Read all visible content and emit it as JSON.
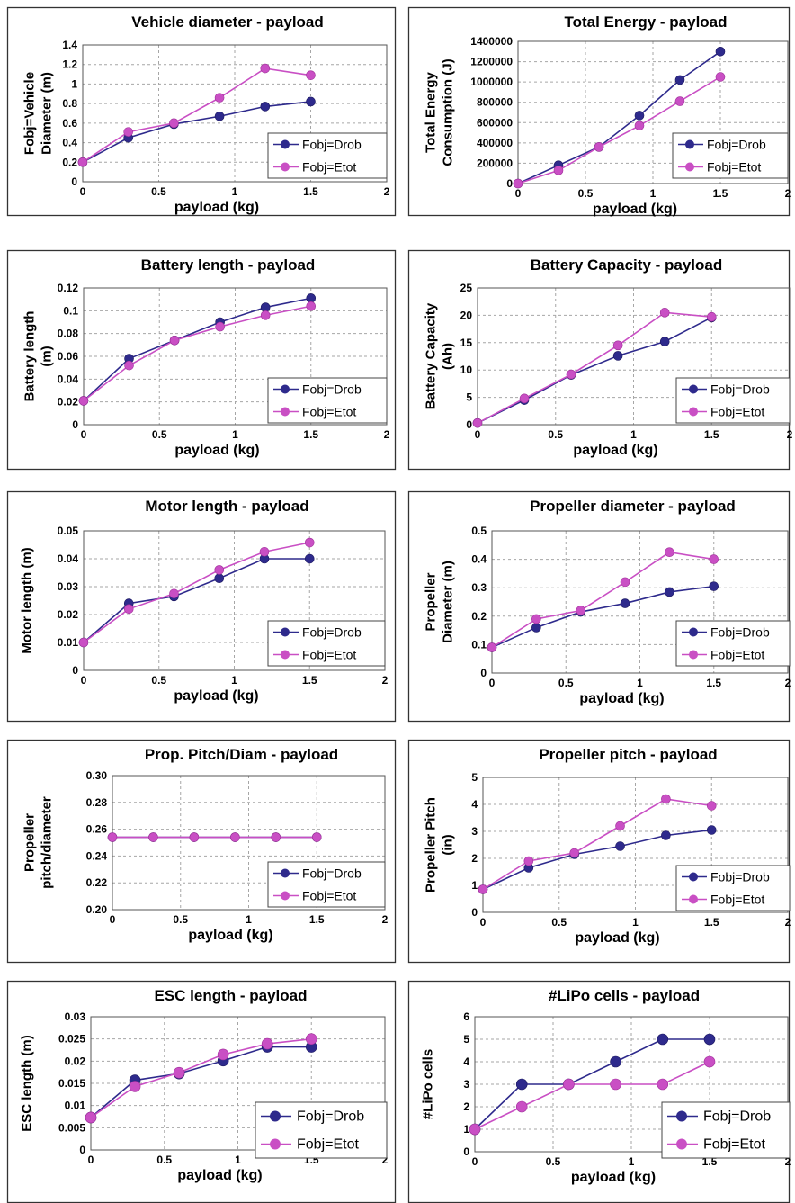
{
  "colors": {
    "drob": "#2e2a8c",
    "etot": "#c94fc4",
    "grid": "#a6a6a6",
    "frame": "#333333"
  },
  "chart_data": [
    {
      "type": "line",
      "title": "Vehicle diameter - payload",
      "xlabel": "payload (kg)",
      "ylabel": [
        "Fobj=Vehicle",
        "Diameter (m)"
      ],
      "x": [
        0,
        0.3,
        0.6,
        0.9,
        1.2,
        1.5
      ],
      "xlim": [
        0,
        2
      ],
      "xticks": [
        0,
        0.5,
        1,
        1.5,
        2
      ],
      "xtick_labels": [
        "0",
        "0.5",
        "1",
        "1.5",
        "2"
      ],
      "ylim": [
        0,
        1.4
      ],
      "yticks": [
        0,
        0.2,
        0.4,
        0.6,
        0.8,
        1,
        1.2,
        1.4
      ],
      "ytick_labels": [
        "0",
        "0.2",
        "0.4",
        "0.6",
        "0.8",
        "1",
        "1.2",
        "1.4"
      ],
      "series": [
        {
          "name": "Fobj=Drob",
          "values": [
            0.2,
            0.45,
            0.59,
            0.67,
            0.77,
            0.82
          ]
        },
        {
          "name": "Fobj=Etot",
          "values": [
            0.2,
            0.51,
            0.6,
            0.86,
            1.16,
            1.09
          ]
        }
      ],
      "grid": true,
      "legend": "bottom-right"
    },
    {
      "type": "line",
      "title": "Total Energy - payload",
      "xlabel": "payload (kg)",
      "ylabel": [
        "Total Energy",
        "Consumption (J)"
      ],
      "x": [
        0,
        0.3,
        0.6,
        0.9,
        1.2,
        1.5
      ],
      "xlim": [
        0,
        2
      ],
      "xticks": [
        0,
        0.5,
        1,
        1.5,
        2
      ],
      "xtick_labels": [
        "0",
        "0.5",
        "1",
        "1.5",
        "2"
      ],
      "ylim": [
        0,
        1400000
      ],
      "yticks": [
        0,
        200000,
        400000,
        600000,
        800000,
        1000000,
        1200000,
        1400000
      ],
      "ytick_labels": [
        "0",
        "200000",
        "400000",
        "600000",
        "800000",
        "1000000",
        "1200000",
        "1400000"
      ],
      "series": [
        {
          "name": "Fobj=Drob",
          "values": [
            0,
            180000,
            360000,
            670000,
            1020000,
            1300000
          ]
        },
        {
          "name": "Fobj=Etot",
          "values": [
            0,
            130000,
            360000,
            570000,
            810000,
            1050000
          ]
        }
      ],
      "grid": true,
      "legend": "bottom-right"
    },
    {
      "type": "line",
      "title": "Battery length - payload",
      "xlabel": "payload (kg)",
      "ylabel": [
        "Battery length",
        "(m)"
      ],
      "x": [
        0,
        0.3,
        0.6,
        0.9,
        1.2,
        1.5
      ],
      "xlim": [
        0,
        2
      ],
      "xticks": [
        0,
        0.5,
        1,
        1.5,
        2
      ],
      "xtick_labels": [
        "0",
        "0.5",
        "1",
        "1.5",
        "2"
      ],
      "ylim": [
        0,
        0.12
      ],
      "yticks": [
        0,
        0.02,
        0.04,
        0.06,
        0.08,
        0.1,
        0.12
      ],
      "ytick_labels": [
        "0",
        "0.02",
        "0.04",
        "0.06",
        "0.08",
        "0.1",
        "0.12"
      ],
      "series": [
        {
          "name": "Fobj=Drob",
          "values": [
            0.021,
            0.058,
            0.074,
            0.09,
            0.103,
            0.111
          ]
        },
        {
          "name": "Fobj=Etot",
          "values": [
            0.021,
            0.052,
            0.074,
            0.086,
            0.096,
            0.104
          ]
        }
      ],
      "grid": true,
      "legend": "bottom-right"
    },
    {
      "type": "line",
      "title": "Battery Capacity - payload",
      "xlabel": "payload (kg)",
      "ylabel": [
        "Battery Capacity",
        "(Ah)"
      ],
      "x": [
        0,
        0.3,
        0.6,
        0.9,
        1.2,
        1.5
      ],
      "xlim": [
        0,
        2
      ],
      "xticks": [
        0,
        0.5,
        1,
        1.5,
        2
      ],
      "xtick_labels": [
        "0",
        "0.5",
        "1",
        "1.5",
        "2"
      ],
      "ylim": [
        0,
        25
      ],
      "yticks": [
        0,
        5,
        10,
        15,
        20,
        25
      ],
      "ytick_labels": [
        "0",
        "5",
        "10",
        "15",
        "20",
        "25"
      ],
      "series": [
        {
          "name": "Fobj=Drob",
          "values": [
            0.3,
            4.5,
            9.1,
            12.6,
            15.2,
            19.6
          ]
        },
        {
          "name": "Fobj=Etot",
          "values": [
            0.3,
            4.8,
            9.2,
            14.5,
            20.5,
            19.7
          ]
        }
      ],
      "grid": true,
      "legend": "bottom-right"
    },
    {
      "type": "line",
      "title": "Motor length - payload",
      "xlabel": "payload (kg)",
      "ylabel": [
        "Motor length (m)"
      ],
      "x": [
        0,
        0.3,
        0.6,
        0.9,
        1.2,
        1.5
      ],
      "xlim": [
        0,
        2
      ],
      "xticks": [
        0,
        0.5,
        1,
        1.5,
        2
      ],
      "xtick_labels": [
        "0",
        "0.5",
        "1",
        "1.5",
        "2"
      ],
      "ylim": [
        0,
        0.05
      ],
      "yticks": [
        0,
        0.01,
        0.02,
        0.03,
        0.04,
        0.05
      ],
      "ytick_labels": [
        "0",
        "0.01",
        "0.02",
        "0.03",
        "0.04",
        "0.05"
      ],
      "series": [
        {
          "name": "Fobj=Drob",
          "values": [
            0.01,
            0.024,
            0.0265,
            0.033,
            0.04,
            0.04
          ]
        },
        {
          "name": "Fobj=Etot",
          "values": [
            0.01,
            0.022,
            0.0275,
            0.036,
            0.0425,
            0.0458
          ]
        }
      ],
      "grid": true,
      "legend": "bottom-right"
    },
    {
      "type": "line",
      "title": "Propeller diameter - payload",
      "xlabel": "payload (kg)",
      "ylabel": [
        "Propeller",
        "Diameter (m)"
      ],
      "x": [
        0,
        0.3,
        0.6,
        0.9,
        1.2,
        1.5
      ],
      "xlim": [
        0,
        2
      ],
      "xticks": [
        0,
        0.5,
        1,
        1.5,
        2
      ],
      "xtick_labels": [
        "0",
        "0.5",
        "1",
        "1.5",
        "2"
      ],
      "ylim": [
        0,
        0.5
      ],
      "yticks": [
        0,
        0.1,
        0.2,
        0.3,
        0.4,
        0.5
      ],
      "ytick_labels": [
        "0",
        "0.1",
        "0.2",
        "0.3",
        "0.4",
        "0.5"
      ],
      "series": [
        {
          "name": "Fobj=Drob",
          "values": [
            0.09,
            0.16,
            0.215,
            0.245,
            0.285,
            0.305
          ]
        },
        {
          "name": "Fobj=Etot",
          "values": [
            0.09,
            0.19,
            0.22,
            0.32,
            0.425,
            0.4
          ]
        }
      ],
      "grid": true,
      "legend": "bottom-right"
    },
    {
      "type": "line",
      "title": "Prop. Pitch/Diam - payload",
      "xlabel": "payload (kg)",
      "ylabel": [
        "Propeller",
        "pitch/diameter"
      ],
      "x": [
        0,
        0.3,
        0.6,
        0.9,
        1.2,
        1.5
      ],
      "xlim": [
        0,
        2
      ],
      "xticks": [
        0,
        0.5,
        1,
        1.5,
        2
      ],
      "xtick_labels": [
        "0",
        "0.5",
        "1",
        "1.5",
        "2"
      ],
      "ylim": [
        0.2,
        0.3
      ],
      "yticks": [
        0.2,
        0.22,
        0.24,
        0.26,
        0.28,
        0.3
      ],
      "ytick_labels": [
        "0.20",
        "0.22",
        "0.24",
        "0.26",
        "0.28",
        "0.30"
      ],
      "series": [
        {
          "name": "Fobj=Drob",
          "values": [
            0.254,
            0.254,
            0.254,
            0.254,
            0.254,
            0.254
          ]
        },
        {
          "name": "Fobj=Etot",
          "values": [
            0.254,
            0.254,
            0.254,
            0.254,
            0.254,
            0.254
          ]
        }
      ],
      "grid": true,
      "legend": "bottom-right"
    },
    {
      "type": "line",
      "title": "Propeller pitch - payload",
      "xlabel": "payload (kg)",
      "ylabel": [
        "Propeller Pitch",
        "(in)"
      ],
      "x": [
        0,
        0.3,
        0.6,
        0.9,
        1.2,
        1.5
      ],
      "xlim": [
        0,
        2
      ],
      "xticks": [
        0,
        0.5,
        1,
        1.5,
        2
      ],
      "xtick_labels": [
        "0",
        "0.5",
        "1",
        "1.5",
        "2"
      ],
      "ylim": [
        0,
        5
      ],
      "yticks": [
        0,
        1,
        2,
        3,
        4,
        5
      ],
      "ytick_labels": [
        "0",
        "1",
        "2",
        "3",
        "4",
        "5"
      ],
      "series": [
        {
          "name": "Fobj=Drob",
          "values": [
            0.85,
            1.65,
            2.15,
            2.45,
            2.85,
            3.05
          ]
        },
        {
          "name": "Fobj=Etot",
          "values": [
            0.85,
            1.9,
            2.2,
            3.2,
            4.2,
            3.95
          ]
        }
      ],
      "grid": true,
      "legend": "bottom-right"
    },
    {
      "type": "line",
      "title": "ESC length - payload",
      "xlabel": "payload (kg)",
      "ylabel": [
        "ESC length (m)"
      ],
      "x": [
        0,
        0.3,
        0.6,
        0.9,
        1.2,
        1.5
      ],
      "xlim": [
        0,
        2
      ],
      "xticks": [
        0,
        0.5,
        1,
        1.5,
        2
      ],
      "xtick_labels": [
        "0",
        "0.5",
        "1",
        "1.5",
        "2"
      ],
      "ylim": [
        0,
        0.03
      ],
      "yticks": [
        0,
        0.005,
        0.01,
        0.015,
        0.02,
        0.025,
        0.03
      ],
      "ytick_labels": [
        "0",
        "0.005",
        "0.01",
        "0.015",
        "0.02",
        "0.025",
        "0.03"
      ],
      "series": [
        {
          "name": "Fobj=Drob",
          "values": [
            0.0073,
            0.0157,
            0.0172,
            0.0201,
            0.0232,
            0.0232
          ]
        },
        {
          "name": "Fobj=Etot",
          "values": [
            0.0073,
            0.0143,
            0.0174,
            0.0215,
            0.0239,
            0.025
          ]
        }
      ],
      "grid": true,
      "legend": "bottom-right"
    },
    {
      "type": "line",
      "title": "#LiPo cells - payload",
      "xlabel": "payload (kg)",
      "ylabel": [
        "#LiPo cells"
      ],
      "x": [
        0,
        0.3,
        0.6,
        0.9,
        1.2,
        1.5
      ],
      "xlim": [
        0,
        2
      ],
      "xticks": [
        0,
        0.5,
        1,
        1.5,
        2
      ],
      "xtick_labels": [
        "0",
        "0.5",
        "1",
        "1.5",
        "2"
      ],
      "ylim": [
        0,
        6
      ],
      "yticks": [
        0,
        1,
        2,
        3,
        4,
        5,
        6
      ],
      "ytick_labels": [
        "0",
        "1",
        "2",
        "3",
        "4",
        "5",
        "6"
      ],
      "series": [
        {
          "name": "Fobj=Drob",
          "values": [
            1,
            3,
            3,
            4,
            5,
            5
          ]
        },
        {
          "name": "Fobj=Etot",
          "values": [
            1,
            2,
            3,
            3,
            3,
            4
          ]
        }
      ],
      "grid": true,
      "legend": "bottom-right"
    }
  ]
}
